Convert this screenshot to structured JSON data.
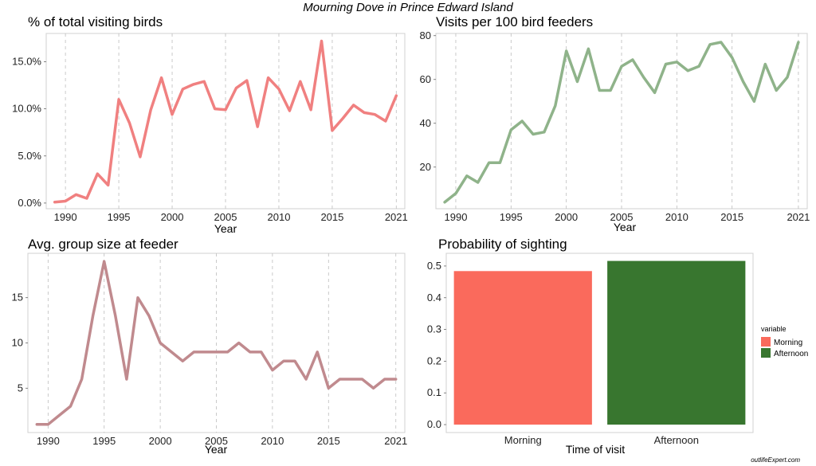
{
  "title": "Mourning Dove in Prince Edward Island",
  "watermark": "outlifeExpert.com",
  "colors": {
    "pct_line": "#F08080",
    "visits_line": "#8FB38A",
    "group_line": "#C08A8E",
    "morning": "#FA6A5C",
    "afternoon": "#38762F"
  },
  "chart_data": [
    {
      "type": "line",
      "title": "% of total visiting birds",
      "xlabel": "Year",
      "ylabel": "",
      "x": [
        1989,
        1990,
        1991,
        1992,
        1993,
        1994,
        1995,
        1996,
        1997,
        1998,
        1999,
        2000,
        2001,
        2002,
        2003,
        2004,
        2005,
        2006,
        2007,
        2008,
        2009,
        2010,
        2011,
        2012,
        2013,
        2014,
        2015,
        2016,
        2017,
        2018,
        2019,
        2020,
        2021
      ],
      "series": [
        {
          "values": [
            0.1,
            0.2,
            0.9,
            0.5,
            3.1,
            1.9,
            11.0,
            8.5,
            4.9,
            9.9,
            13.3,
            9.4,
            12.1,
            12.6,
            12.9,
            10.0,
            9.9,
            12.2,
            13.0,
            8.1,
            13.3,
            12.1,
            9.8,
            12.9,
            9.9,
            17.2,
            7.7,
            9.0,
            10.4,
            9.6,
            9.4,
            8.7,
            11.4
          ]
        }
      ],
      "xlim": [
        1988.2,
        2021.8
      ],
      "ylim": [
        -0.6,
        18.0
      ],
      "xticks": [
        1990,
        1995,
        2000,
        2005,
        2010,
        2015,
        2021
      ],
      "yticks": [
        0,
        5,
        10,
        15
      ],
      "ytick_labels": [
        "0.0%",
        "5.0%",
        "10.0%",
        "15.0%"
      ],
      "grid": "vertical dashed"
    },
    {
      "type": "line",
      "title": "Visits per 100 bird feeders",
      "xlabel": "Year",
      "ylabel": "",
      "x": [
        1989,
        1990,
        1991,
        1992,
        1993,
        1994,
        1995,
        1996,
        1997,
        1998,
        1999,
        2000,
        2001,
        2002,
        2003,
        2004,
        2005,
        2006,
        2007,
        2008,
        2009,
        2010,
        2011,
        2012,
        2013,
        2014,
        2015,
        2016,
        2017,
        2018,
        2019,
        2020,
        2021
      ],
      "series": [
        {
          "values": [
            4,
            8,
            16,
            13,
            22,
            22,
            37,
            41,
            35,
            36,
            48,
            73,
            59,
            74,
            55,
            55,
            66,
            69,
            61,
            54,
            67,
            68,
            64,
            66,
            76,
            77,
            70,
            59,
            50,
            67,
            55,
            61,
            77
          ]
        }
      ],
      "xlim": [
        1988.2,
        2021.8
      ],
      "ylim": [
        1,
        81
      ],
      "xticks": [
        1990,
        1995,
        2000,
        2005,
        2010,
        2015,
        2021
      ],
      "yticks": [
        20,
        40,
        60,
        80
      ],
      "ytick_labels": [
        "20",
        "40",
        "60",
        "80"
      ],
      "grid": "vertical dashed"
    },
    {
      "type": "line",
      "title": "Avg. group size at feeder",
      "xlabel": "Year",
      "ylabel": "",
      "x": [
        1989,
        1990,
        1991,
        1992,
        1993,
        1994,
        1995,
        1996,
        1997,
        1998,
        1999,
        2000,
        2001,
        2002,
        2003,
        2004,
        2005,
        2006,
        2007,
        2008,
        2009,
        2010,
        2011,
        2012,
        2013,
        2014,
        2015,
        2016,
        2017,
        2018,
        2019,
        2020,
        2021
      ],
      "series": [
        {
          "values": [
            1,
            1,
            2,
            3,
            6,
            13,
            19,
            13,
            6,
            15,
            13,
            10,
            9,
            8,
            9,
            9,
            9,
            9,
            10,
            9,
            9,
            7,
            8,
            8,
            6,
            9,
            5,
            6,
            6,
            6,
            5,
            6,
            6
          ]
        }
      ],
      "xlim": [
        1988.2,
        2021.8
      ],
      "ylim": [
        0.1,
        19.9
      ],
      "xticks": [
        1990,
        1995,
        2000,
        2005,
        2010,
        2015,
        2021
      ],
      "yticks": [
        5,
        10,
        15
      ],
      "ytick_labels": [
        "5",
        "10",
        "15"
      ],
      "grid": "vertical dashed"
    },
    {
      "type": "bar",
      "title": "Probability of sighting",
      "xlabel": "Time of visit",
      "ylabel": "",
      "categories": [
        "Morning",
        "Afternoon"
      ],
      "values": [
        0.484,
        0.516
      ],
      "ylim": [
        -0.025,
        0.54
      ],
      "yticks": [
        0,
        0.1,
        0.2,
        0.3,
        0.4,
        0.5
      ],
      "ytick_labels": [
        "0.0",
        "0.1",
        "0.2",
        "0.3",
        "0.4",
        "0.5"
      ],
      "legend": {
        "title": "variable",
        "entries": [
          "Morning",
          "Afternoon"
        ],
        "position": "right"
      },
      "grid": "none"
    }
  ]
}
